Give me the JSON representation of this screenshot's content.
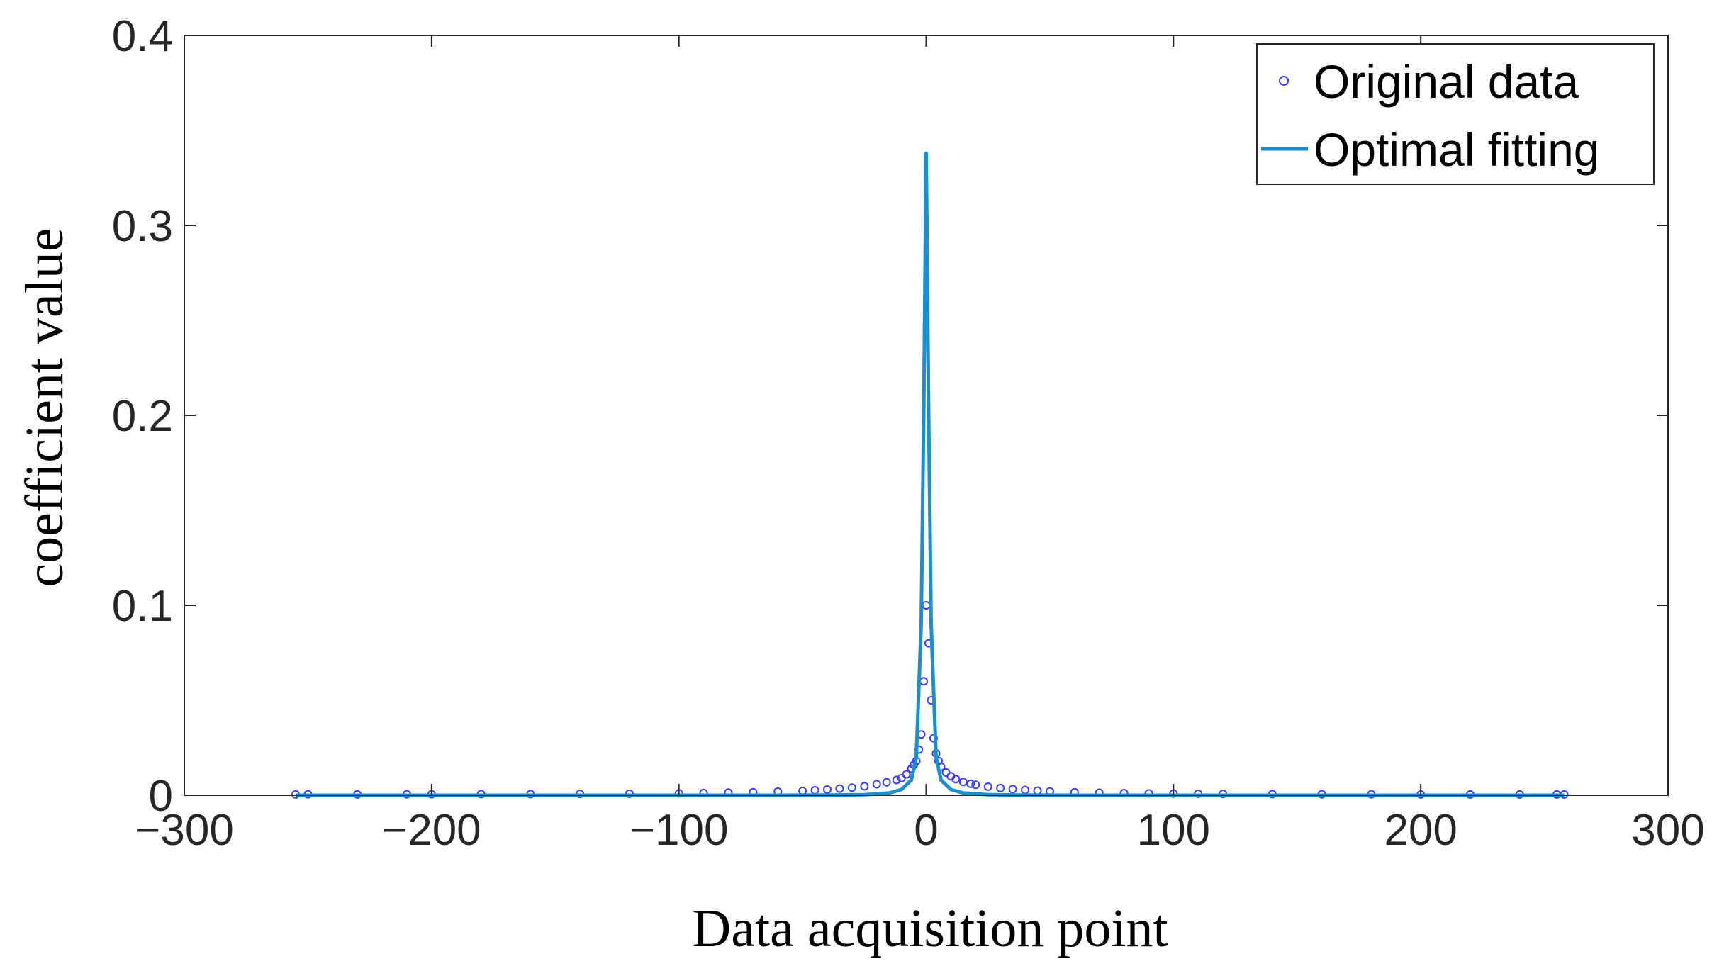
{
  "chart_data": {
    "type": "scatter",
    "title": "",
    "xlabel": "Data acquisition point",
    "ylabel": "coefficient value",
    "xlim": [
      -300,
      300
    ],
    "ylim": [
      0,
      0.4
    ],
    "xticks": [
      -300,
      -200,
      -100,
      0,
      100,
      200,
      300
    ],
    "xtick_labels": [
      "−300",
      "−200",
      "−100",
      "0",
      "100",
      "200",
      "300"
    ],
    "yticks": [
      0,
      0.1,
      0.2,
      0.3,
      0.4
    ],
    "ytick_labels": [
      "0",
      "0.1",
      "0.2",
      "0.3",
      "0.4"
    ],
    "grid": false,
    "legend_position": "top-right",
    "series": [
      {
        "name": "Original data",
        "kind": "markers",
        "marker": "circle",
        "color": "#3b3bff",
        "x": [
          -255,
          -250,
          -230,
          -210,
          -200,
          -180,
          -160,
          -140,
          -120,
          -100,
          -90,
          -80,
          -70,
          -60,
          -50,
          -45,
          -40,
          -35,
          -30,
          -25,
          -20,
          -16,
          -12,
          -10,
          -8,
          -6,
          -5,
          -4,
          -3,
          -2,
          -1,
          0,
          1,
          2,
          3,
          4,
          5,
          6,
          8,
          10,
          12,
          15,
          18,
          20,
          25,
          30,
          35,
          40,
          45,
          50,
          60,
          70,
          80,
          90,
          100,
          110,
          120,
          140,
          160,
          180,
          200,
          220,
          240,
          255,
          258
        ],
        "y": [
          0.0004,
          0.0005,
          0.0004,
          0.0005,
          0.0005,
          0.0006,
          0.0006,
          0.0007,
          0.0008,
          0.001,
          0.0012,
          0.0014,
          0.0016,
          0.0019,
          0.0023,
          0.0026,
          0.003,
          0.0035,
          0.004,
          0.0047,
          0.0058,
          0.0068,
          0.008,
          0.009,
          0.011,
          0.014,
          0.016,
          0.018,
          0.024,
          0.032,
          0.06,
          0.1,
          0.08,
          0.05,
          0.03,
          0.022,
          0.018,
          0.015,
          0.012,
          0.01,
          0.0085,
          0.007,
          0.006,
          0.0055,
          0.0045,
          0.0038,
          0.0032,
          0.0028,
          0.0024,
          0.002,
          0.0016,
          0.0013,
          0.0011,
          0.001,
          0.0009,
          0.0008,
          0.0007,
          0.0006,
          0.0005,
          0.0005,
          0.0004,
          0.0004,
          0.0004,
          0.0004,
          0.0004
        ]
      },
      {
        "name": "Optimal fitting",
        "kind": "line",
        "color": "#1a8fcf",
        "x": [
          -255,
          -200,
          -150,
          -100,
          -60,
          -40,
          -25,
          -15,
          -10,
          -6,
          -4,
          -2,
          -1,
          0,
          1,
          2,
          4,
          6,
          10,
          15,
          25,
          40,
          60,
          100,
          150,
          200,
          258
        ],
        "y": [
          0,
          0,
          0,
          0,
          0,
          0.0001,
          0.0003,
          0.0012,
          0.003,
          0.008,
          0.02,
          0.09,
          0.2,
          0.338,
          0.2,
          0.09,
          0.02,
          0.008,
          0.003,
          0.0012,
          0.0003,
          0.0001,
          0,
          0,
          0,
          0,
          0
        ]
      }
    ]
  }
}
